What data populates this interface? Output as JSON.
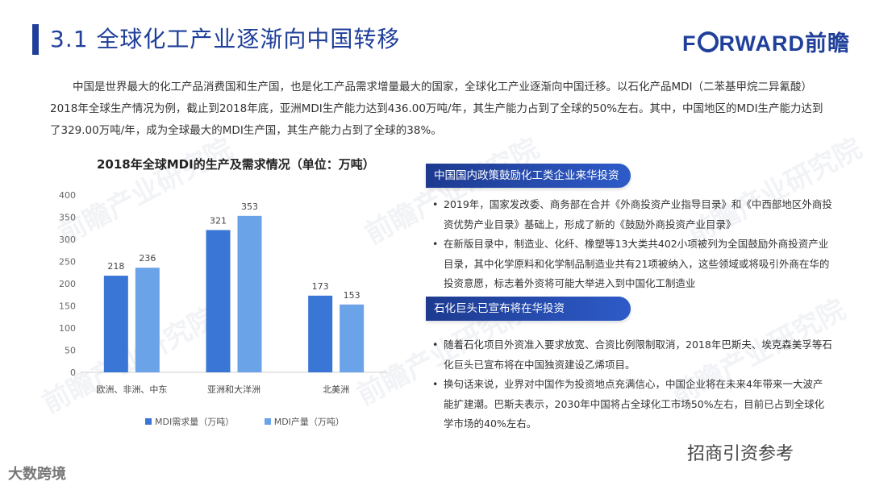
{
  "header": {
    "title": "3.1 全球化工产业逐渐向中国转移",
    "logo_pre": "F",
    "logo_post": "RWARD前瞻"
  },
  "intro": "中国是世界最大的化工产品消费国和生产国，也是化工产品需求增量最大的国家，全球化工产业逐渐向中国迁移。以石化产品MDI（二苯基甲烷二异氰酸）2018年全球生产情况为例，截止到2018年底，亚洲MDI生产能力达到436.00万吨/年，其生产能力占到了全球的50%左右。其中，中国地区的MDI生产能力达到了329.00万吨/年，成为全球最大的MDI生产国，其生产能力占到了全球的38%。",
  "chart_data": {
    "type": "bar",
    "title": "2018年全球MDI的生产及需求情况（单位：万吨）",
    "categories": [
      "欧洲、非洲、中东",
      "亚洲和大洋洲",
      "北美洲"
    ],
    "series": [
      {
        "name": "MDI需求量（万吨）",
        "values": [
          218,
          321,
          173
        ],
        "color": "#3a76d6"
      },
      {
        "name": "MDI产量（万吨）",
        "values": [
          236,
          353,
          153
        ],
        "color": "#6aa3e8"
      }
    ],
    "ylim": [
      0,
      400
    ],
    "yticks": [
      "0",
      "50",
      "100",
      "150",
      "200",
      "250",
      "300",
      "350",
      "400"
    ],
    "grid": false,
    "legend": "bottom"
  },
  "sections": [
    {
      "heading": "中国国内政策鼓励化工类企业来华投资",
      "bullets": [
        "2019年，国家发改委、商务部在合并《外商投资产业指导目录》和《中西部地区外商投资优势产业目录》基础上，形成了新的《鼓励外商投资产业目录》",
        "在新版目录中，制造业、化纤、橡塑等13大类共402小项被列为全国鼓励外商投资产业目录，其中化学原料和化学制品制造业共有21项被纳入，这些领域或将吸引外商在华的投资意愿，标志着外资将可能大举进入到中国化工制造业"
      ]
    },
    {
      "heading": "石化巨头已宣布将在华投资",
      "bullets": [
        "随着石化项目外资准入要求放宽、合资比例限制取消，2018年巴斯夫、埃克森美孚等石化巨头已宣布将在中国独资建设乙烯项目。",
        "换句话来说，业界对中国作为投资地点充满信心，中国企业将在未来4年带来一大波产能扩建潮。巴斯夫表示，2030年中国将占全球化工市场50%左右，目前已占到全球化学市场的40%左右。"
      ]
    }
  ],
  "bullet_mark": "•",
  "watermark": "前瞻产业研究院",
  "footer": {
    "wechat": "招商引资参考",
    "bigdata": "大数跨境"
  }
}
